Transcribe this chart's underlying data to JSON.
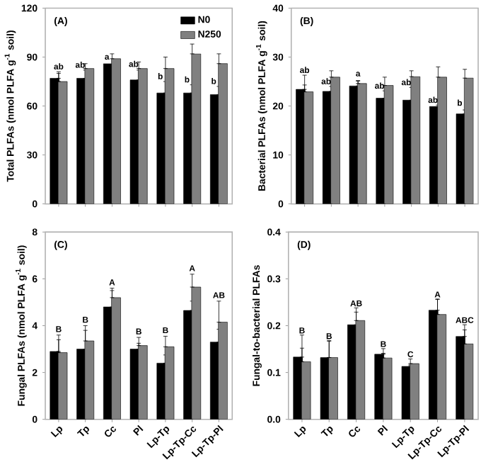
{
  "chart_data": [
    {
      "type": "bar",
      "ylabel": "Total PLFAs (nmol PLFA g$^{-1}$ soil)",
      "categories": [
        "Lp",
        "Tp",
        "Cc",
        "Pl",
        "Lp-Tp",
        "Lp-Tp-Cc",
        "Lp-Tp-Pl"
      ],
      "ylim": [
        0,
        120
      ],
      "yticks": [
        0,
        30,
        60,
        90,
        120
      ],
      "tick_labels": "y",
      "legend": "top right",
      "series": [
        {
          "name": "N0",
          "color": "#000000",
          "values": [
            77,
            77,
            86,
            76,
            68,
            68,
            67
          ],
          "errors": [
            [
              77,
              81
            ],
            [
              77,
              82
            ],
            null,
            [
              76,
              82
            ],
            [
              68,
              75
            ],
            [
              68,
              73
            ],
            [
              67,
              72
            ]
          ]
        },
        {
          "name": "N250",
          "color": "#808080",
          "values": [
            75,
            83,
            89,
            83,
            83,
            92,
            86
          ],
          "errors": [
            [
              75,
              80
            ],
            [
              83,
              86
            ],
            [
              89,
              92
            ],
            [
              83,
              87
            ],
            [
              83,
              90
            ],
            [
              92,
              98
            ],
            [
              86,
              92
            ]
          ]
        }
      ],
      "annotations": [
        "(A)",
        {
          "text": "ab",
          "x": "Lp",
          "y": 82
        },
        {
          "text": "ab",
          "x": "Tp",
          "y": 83
        },
        {
          "text": "a",
          "x": "Cc",
          "y": 88
        },
        {
          "text": "ab",
          "x": "Pl",
          "y": 83.5
        },
        {
          "text": "b",
          "x": "Lp-Tp",
          "y": 76
        },
        {
          "text": "b",
          "x": "Lp-Tp-Cc",
          "y": 74
        },
        {
          "text": "b",
          "x": "Lp-Tp-Pl",
          "y": 73
        }
      ]
    },
    {
      "type": "bar",
      "ylabel": "Bacterial PLFAs (nmol PLFA g$^{-1}$ soil)",
      "categories": [
        "Lp",
        "Tp",
        "Cc",
        "Pl",
        "Lp-Tp",
        "Lp-Tp-Cc",
        "Lp-Tp-Pl"
      ],
      "ylim": [
        0,
        40
      ],
      "yticks": [
        0,
        10,
        20,
        30,
        40
      ],
      "tick_labels": "y",
      "series": [
        {
          "color": "#000000",
          "values": [
            23.4,
            23.0,
            24.1,
            21.6,
            21.2,
            19.9,
            18.4
          ],
          "errors": [
            [
              23.4,
              26.3
            ],
            [
              23.0,
              24.0
            ],
            [
              24.1,
              25.2
            ],
            [
              21.6,
              23.1
            ],
            [
              21.2,
              23.8
            ],
            [
              19.9,
              20.2
            ],
            [
              18.4,
              19.2
            ]
          ]
        },
        {
          "color": "#808080",
          "values": [
            22.9,
            25.9,
            24.6,
            24.2,
            26.0,
            25.9,
            25.7
          ],
          "errors": [
            [
              22.9,
              24.3
            ],
            [
              25.9,
              27.2
            ],
            [
              24.6,
              25.1
            ],
            [
              24.2,
              25.9
            ],
            [
              26.0,
              27.2
            ],
            [
              25.9,
              28.0
            ],
            [
              25.7,
              27.5
            ]
          ]
        }
      ],
      "annotations": [
        "(B)",
        {
          "text": "ab",
          "x": "Lp",
          "y": 26.6
        },
        {
          "text": "ab",
          "x": "Tp",
          "y": 24.3
        },
        {
          "text": "a",
          "x": "Cc",
          "y": 25.9
        },
        {
          "text": "ab",
          "x": "Pl",
          "y": 23.4
        },
        {
          "text": "ab",
          "x": "Lp-Tp",
          "y": 24.1
        },
        {
          "text": "ab",
          "x": "Lp-Tp-Cc",
          "y": 20.5
        },
        {
          "text": "b",
          "x": "Lp-Tp-Pl",
          "y": 19.9
        }
      ]
    },
    {
      "type": "bar",
      "ylabel": "Fungal PLFAs (nmol PLFA g$^{-1}$ soil)",
      "categories": [
        "Lp",
        "Tp",
        "Cc",
        "Pl",
        "Lp-Tp",
        "Lp-Tp-Cc",
        "Lp-Tp-Pl"
      ],
      "ylim": [
        0,
        8
      ],
      "yticks": [
        0,
        2,
        4,
        6,
        8
      ],
      "series": [
        {
          "color": "#000000",
          "values": [
            2.9,
            3.0,
            4.8,
            3.0,
            2.4,
            4.65,
            3.3
          ],
          "errors": [
            [
              2.9,
              3.6
            ],
            [
              3.0,
              3.8
            ],
            [
              4.8,
              5.5
            ],
            [
              3.0,
              3.25
            ],
            [
              2.4,
              2.75
            ],
            [
              4.65,
              5.05
            ],
            [
              3.3,
              3.85
            ]
          ]
        },
        {
          "color": "#808080",
          "values": [
            2.85,
            3.35,
            5.2,
            3.15,
            3.1,
            5.65,
            4.15
          ],
          "errors": [
            [
              2.85,
              3.4
            ],
            [
              3.35,
              4.0
            ],
            [
              5.2,
              5.6
            ],
            [
              3.15,
              3.5
            ],
            [
              3.1,
              3.55
            ],
            [
              5.65,
              6.2
            ],
            [
              4.15,
              5.05
            ]
          ]
        }
      ],
      "annotations": [
        "(C)",
        {
          "text": "B",
          "x": "Lp",
          "y": 3.7
        },
        {
          "text": "B",
          "x": "Tp",
          "y": 4.1
        },
        {
          "text": "A",
          "x": "Cc",
          "y": 5.7
        },
        {
          "text": "B",
          "x": "Pl",
          "y": 3.6
        },
        {
          "text": "B",
          "x": "Lp-Tp",
          "y": 3.65
        },
        {
          "text": "A",
          "x": "Lp-Tp-Cc",
          "y": 6.3
        },
        {
          "text": "AB",
          "x": "Lp-Tp-Pl",
          "y": 5.15
        }
      ]
    },
    {
      "type": "bar",
      "ylabel": "Fungal-to-bacterial PLFAs",
      "categories": [
        "Lp",
        "Tp",
        "Cc",
        "Pl",
        "Lp-Tp",
        "Lp-Tp-Cc",
        "Lp-Tp-Pl"
      ],
      "ylim": [
        0,
        0.4
      ],
      "yticks": [
        {
          "value": 0,
          "label": "0.0"
        },
        {
          "value": 0.1,
          "label": "0.1"
        },
        {
          "value": 0.2,
          "label": "0.2"
        },
        {
          "value": 0.3,
          "label": "0.3"
        },
        {
          "value": 0.4,
          "label": "0.4"
        }
      ],
      "series": [
        {
          "color": "#000000",
          "values": [
            0.133,
            0.132,
            0.202,
            0.139,
            0.113,
            0.233,
            0.177
          ],
          "errors": [
            [
              0.133,
              0.18
            ],
            [
              0.132,
              0.168
            ],
            [
              0.202,
              0.238
            ],
            [
              0.139,
              0.141
            ],
            [
              0.113,
              0.116
            ],
            [
              0.233,
              0.257
            ],
            [
              0.177,
              0.202
            ]
          ]
        },
        {
          "color": "#808080",
          "values": [
            0.123,
            0.132,
            0.211,
            0.131,
            0.119,
            0.224,
            0.161
          ],
          "errors": [
            [
              0.123,
              0.152
            ],
            [
              0.132,
              0.167
            ],
            [
              0.211,
              0.229
            ],
            [
              0.131,
              0.151
            ],
            [
              0.119,
              0.129
            ],
            [
              0.224,
              0.256
            ],
            [
              0.161,
              0.191
            ]
          ]
        }
      ],
      "annotations": [
        "(D)",
        {
          "text": "B",
          "x": "Lp",
          "y": 0.182
        },
        {
          "text": "B",
          "x": "Tp",
          "y": 0.17
        },
        {
          "text": "AB",
          "x": "Cc",
          "y": 0.24
        },
        {
          "text": "B",
          "x": "Pl",
          "y": 0.153
        },
        {
          "text": "C",
          "x": "Lp-Tp",
          "y": 0.131
        },
        {
          "text": "A",
          "x": "Lp-Tp-Cc",
          "y": 0.259
        },
        {
          "text": "ABC",
          "x": "Lp-Tp-Pl",
          "y": 0.204
        }
      ]
    }
  ]
}
